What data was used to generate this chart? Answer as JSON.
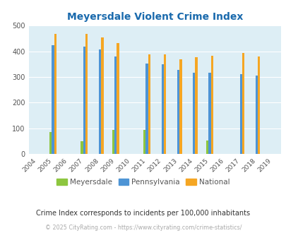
{
  "title": "Meyersdale Violent Crime Index",
  "years": [
    2004,
    2005,
    2006,
    2007,
    2008,
    2009,
    2010,
    2011,
    2012,
    2013,
    2014,
    2015,
    2016,
    2017,
    2018,
    2019
  ],
  "meyersdale": {
    "2005": 85,
    "2007": 48,
    "2009": 93,
    "2011": 93,
    "2015": 52
  },
  "pennsylvania": {
    "2005": 425,
    "2007": 418,
    "2008": 408,
    "2009": 380,
    "2011": 353,
    "2012": 349,
    "2013": 328,
    "2014": 315,
    "2015": 315,
    "2017": 311,
    "2018": 305
  },
  "national": {
    "2005": 469,
    "2007": 468,
    "2008": 455,
    "2009": 433,
    "2011": 387,
    "2012": 387,
    "2013": 368,
    "2014": 376,
    "2015": 383,
    "2017": 394,
    "2018": 379
  },
  "color_meyersdale": "#8dc63f",
  "color_pennsylvania": "#4d94d5",
  "color_national": "#f5a623",
  "background_color": "#ddeef5",
  "ylim": [
    0,
    500
  ],
  "yticks": [
    0,
    100,
    200,
    300,
    400,
    500
  ],
  "subtitle": "Crime Index corresponds to incidents per 100,000 inhabitants",
  "copyright": "© 2025 CityRating.com - https://www.cityrating.com/crime-statistics/",
  "bar_width": 0.15
}
